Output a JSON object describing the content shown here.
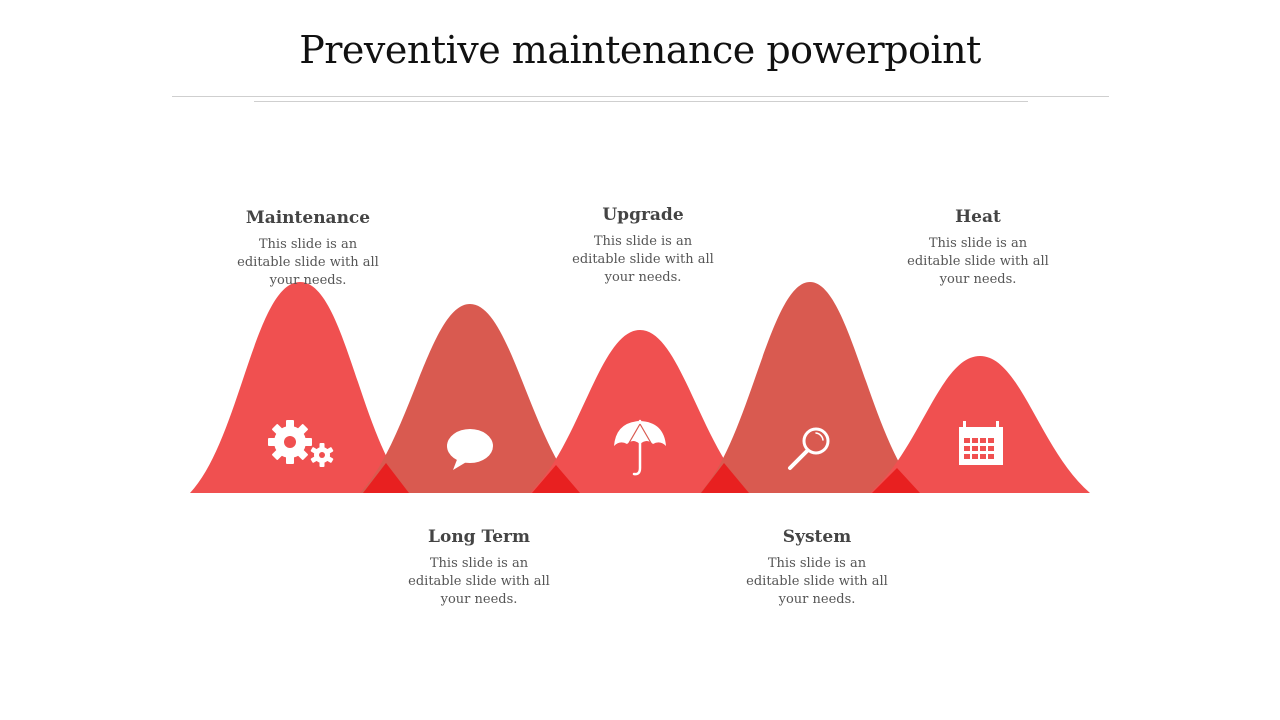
{
  "title": "Preventive maintenance powerpoint",
  "colors": {
    "peak_light": "#f05050",
    "peak_dark": "#d95a50",
    "overlap": "#e82020",
    "icon": "#ffffff",
    "text_title": "#444444",
    "text_body": "#555555"
  },
  "steps": [
    {
      "title": "Maintenance",
      "text": "This slide is an editable slide with all your needs.",
      "icon": "gears-icon"
    },
    {
      "title": "Long Term",
      "text": "This slide is an editable slide with all your needs.",
      "icon": "speech-bubble-icon"
    },
    {
      "title": "Upgrade",
      "text": "This slide is an editable slide with all your needs.",
      "icon": "umbrella-icon"
    },
    {
      "title": "System",
      "text": "This slide is an editable slide with all your needs.",
      "icon": "magnifier-icon"
    },
    {
      "title": "Heat",
      "text": "This slide is an editable slide with all your needs.",
      "icon": "calendar-icon"
    }
  ]
}
